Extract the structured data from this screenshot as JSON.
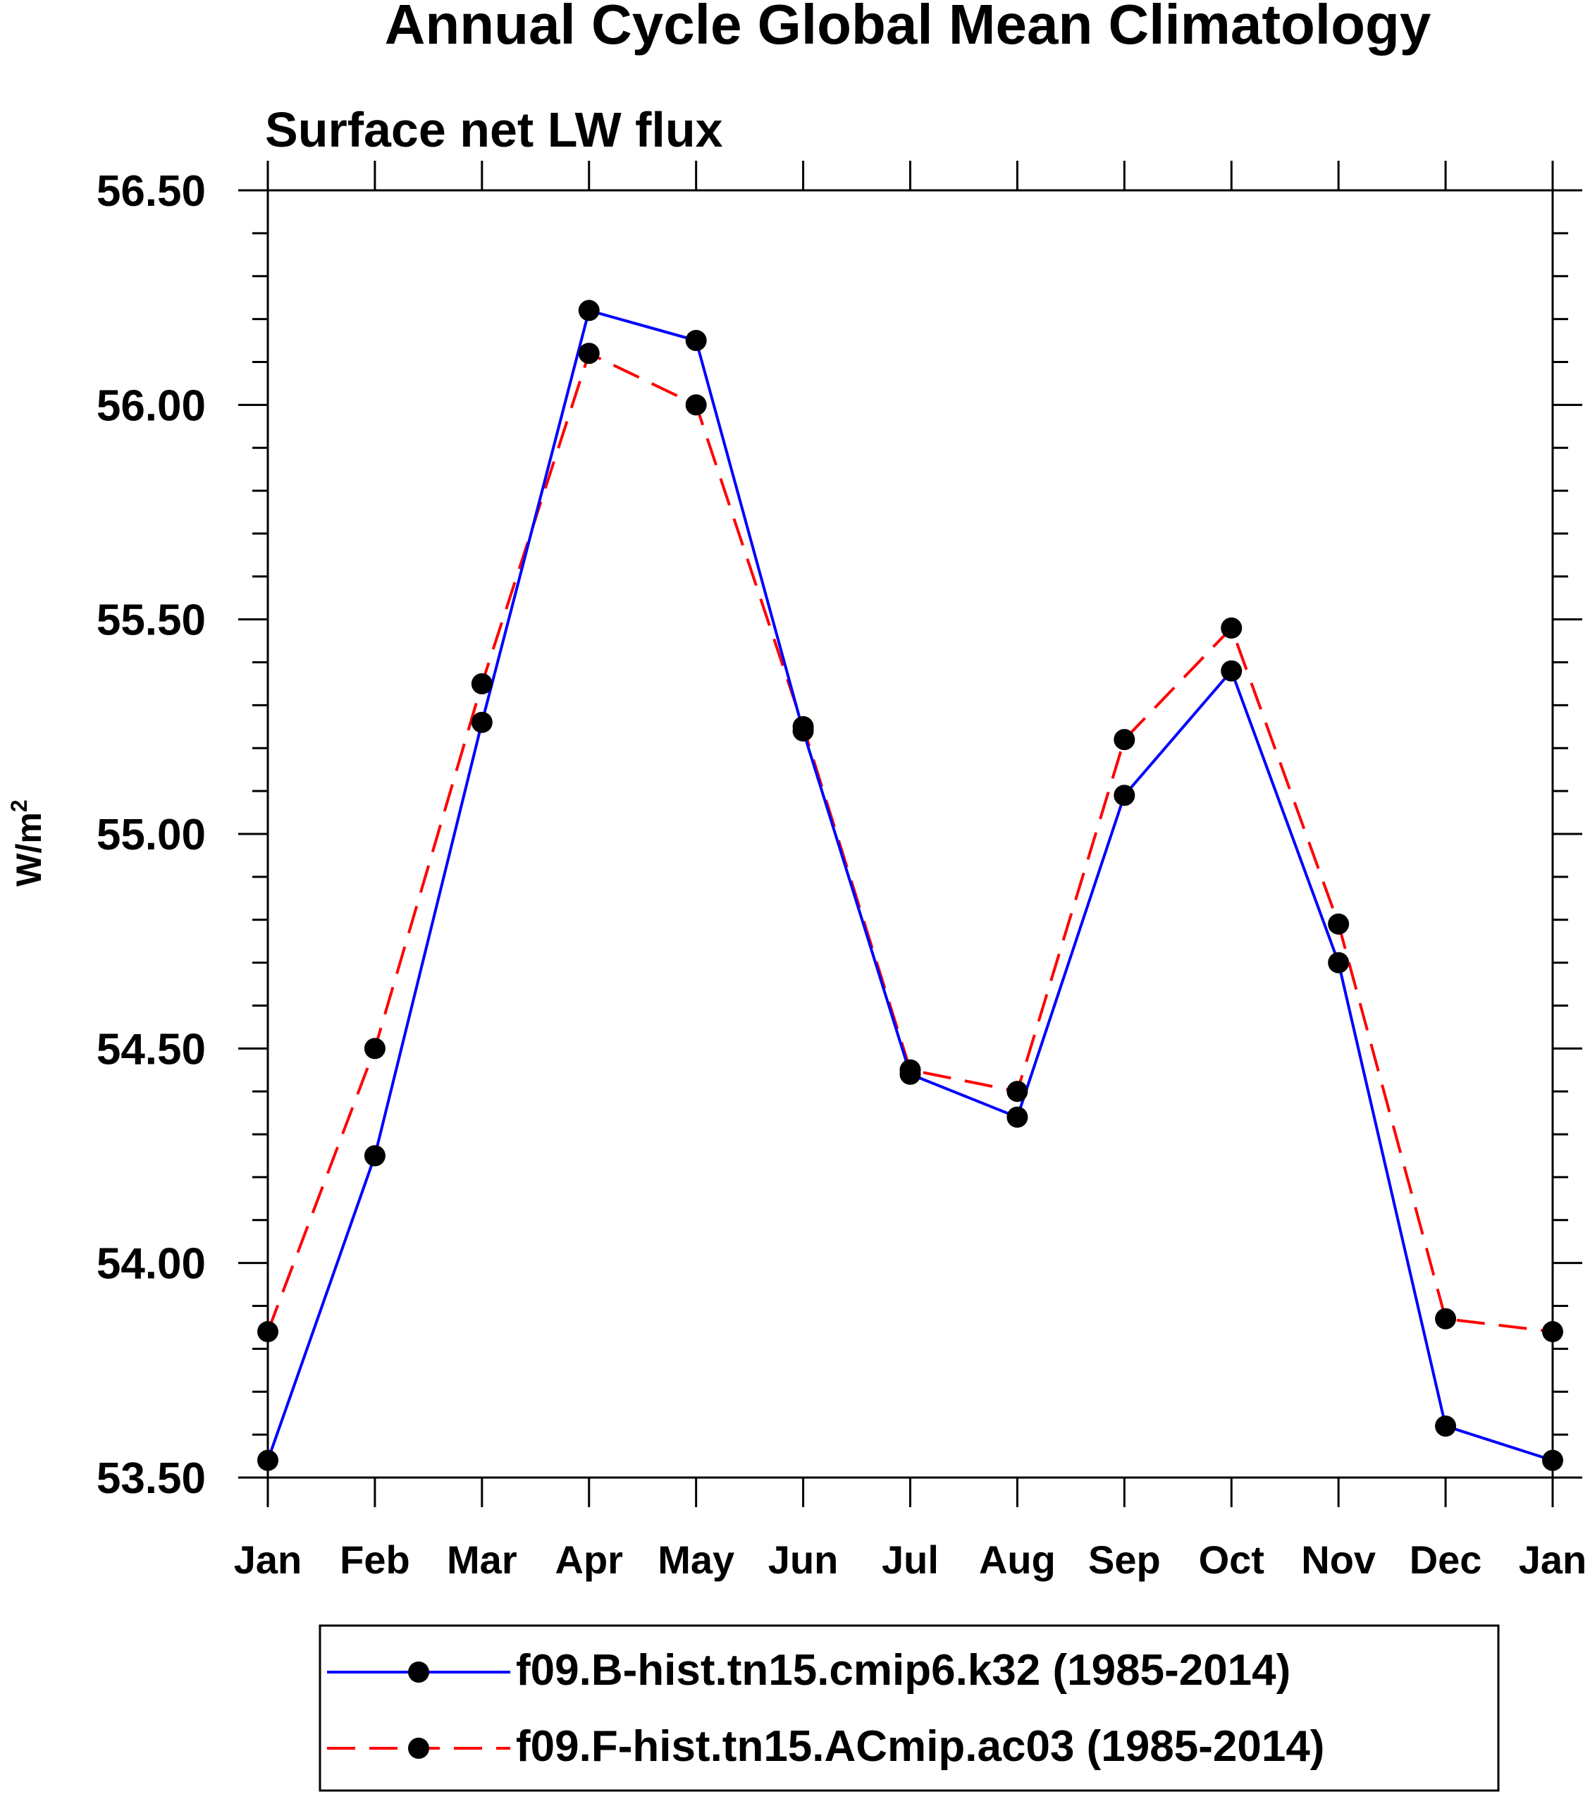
{
  "chart_data": {
    "type": "line",
    "title": "Annual Cycle Global Mean Climatology",
    "subtitle": "Surface net LW flux",
    "ylabel": "W/m",
    "ylabel_superscript": "2",
    "categories": [
      "Jan",
      "Feb",
      "Mar",
      "Apr",
      "May",
      "Jun",
      "Jul",
      "Aug",
      "Sep",
      "Oct",
      "Nov",
      "Dec",
      "Jan"
    ],
    "ylim": [
      53.5,
      56.5
    ],
    "yticks": [
      "53.50",
      "54.00",
      "54.50",
      "55.00",
      "55.50",
      "56.00",
      "56.50"
    ],
    "grid": false,
    "legend_position": "bottom",
    "series": [
      {
        "name": "f09.B-hist.tn15.cmip6.k32 (1985-2014)",
        "color": "#0000ff",
        "line_style": "solid",
        "marker_color": "#000000",
        "values": [
          53.54,
          54.25,
          55.26,
          56.22,
          56.15,
          55.24,
          54.44,
          54.34,
          55.09,
          55.38,
          54.7,
          53.62,
          53.54
        ]
      },
      {
        "name": "f09.F-hist.tn15.ACmip.ac03 (1985-2014)",
        "color": "#ff0000",
        "line_style": "dashed",
        "marker_color": "#000000",
        "values": [
          53.84,
          54.5,
          55.35,
          56.12,
          56.0,
          55.25,
          54.45,
          54.4,
          55.22,
          55.48,
          54.79,
          53.87,
          53.84
        ]
      }
    ]
  }
}
